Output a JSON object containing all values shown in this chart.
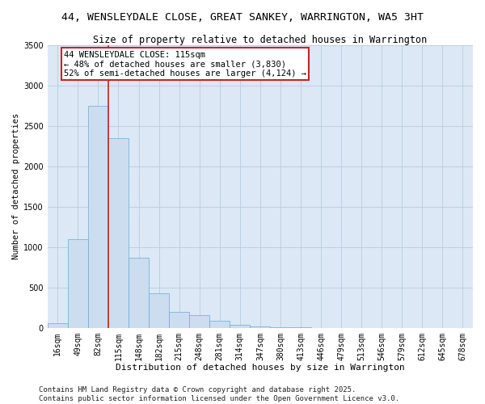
{
  "title1": "44, WENSLEYDALE CLOSE, GREAT SANKEY, WARRINGTON, WA5 3HT",
  "title2": "Size of property relative to detached houses in Warrington",
  "xlabel": "Distribution of detached houses by size in Warrington",
  "ylabel": "Number of detached properties",
  "categories": [
    "16sqm",
    "49sqm",
    "82sqm",
    "115sqm",
    "148sqm",
    "182sqm",
    "215sqm",
    "248sqm",
    "281sqm",
    "314sqm",
    "347sqm",
    "380sqm",
    "413sqm",
    "446sqm",
    "479sqm",
    "513sqm",
    "546sqm",
    "579sqm",
    "612sqm",
    "645sqm",
    "678sqm"
  ],
  "values": [
    55,
    1100,
    2750,
    2350,
    870,
    430,
    195,
    155,
    85,
    40,
    15,
    5,
    3,
    2,
    1,
    0,
    0,
    0,
    0,
    0,
    0
  ],
  "bar_color": "#ccddf0",
  "bar_edge_color": "#6aaad4",
  "vline_index": 2,
  "vline_color": "#cc2222",
  "ylim": [
    0,
    3500
  ],
  "yticks": [
    0,
    500,
    1000,
    1500,
    2000,
    2500,
    3000,
    3500
  ],
  "annotation_title": "44 WENSLEYDALE CLOSE: 115sqm",
  "annotation_line1": "← 48% of detached houses are smaller (3,830)",
  "annotation_line2": "52% of semi-detached houses are larger (4,124) →",
  "annotation_box_color": "#cc2222",
  "footer1": "Contains HM Land Registry data © Crown copyright and database right 2025.",
  "footer2": "Contains public sector information licensed under the Open Government Licence v3.0.",
  "bg_color": "#ffffff",
  "plot_bg_color": "#dce8f5",
  "grid_color": "#b8ccdf",
  "title1_fontsize": 9.5,
  "title2_fontsize": 8.5,
  "xlabel_fontsize": 8,
  "ylabel_fontsize": 7.5,
  "tick_fontsize": 7,
  "annotation_fontsize": 7.5,
  "footer_fontsize": 6.5
}
